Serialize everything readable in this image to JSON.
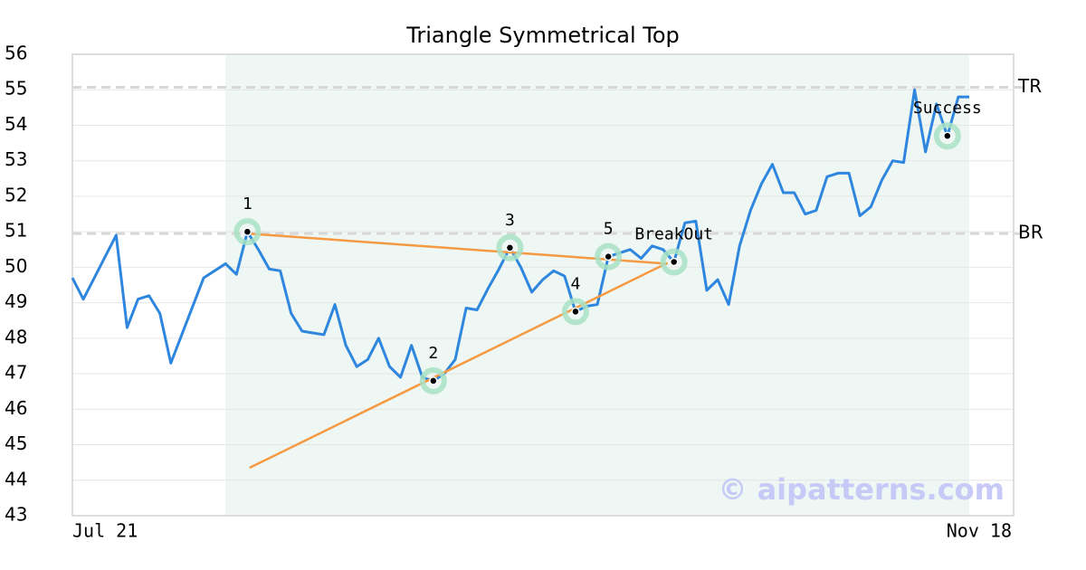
{
  "chart_data": {
    "type": "line",
    "title": "Triangle Symmetrical Top",
    "categories": [
      "Jul 21",
      null,
      null,
      null,
      null,
      null,
      null,
      null,
      null,
      null,
      null,
      null,
      null,
      null,
      null,
      null,
      null,
      null,
      null,
      null,
      null,
      null,
      null,
      null,
      null,
      null,
      null,
      null,
      null,
      null,
      null,
      null,
      null,
      null,
      null,
      null,
      null,
      null,
      null,
      null,
      null,
      null,
      null,
      null,
      null,
      null,
      null,
      null,
      null,
      null,
      null,
      null,
      null,
      null,
      null,
      null,
      null,
      null,
      null,
      null,
      null,
      null,
      null,
      null,
      null,
      null,
      null,
      null,
      null,
      null,
      null,
      null,
      null,
      null,
      null,
      null,
      null,
      null,
      null,
      null,
      null,
      null,
      "Nov 18"
    ],
    "series": [
      {
        "color": "#2e86de",
        "values": [
          49.7,
          49.1,
          49.7,
          50.3,
          50.9,
          48.3,
          49.1,
          49.2,
          48.7,
          47.3,
          48.1,
          48.9,
          49.7,
          49.9,
          50.1,
          49.8,
          51.0,
          50.5,
          49.95,
          49.9,
          48.7,
          48.2,
          48.15,
          48.1,
          48.95,
          47.8,
          47.2,
          47.4,
          48.0,
          47.2,
          46.9,
          47.8,
          46.9,
          46.8,
          47.0,
          47.4,
          48.85,
          48.8,
          49.4,
          49.95,
          50.55,
          50.0,
          49.3,
          49.65,
          49.9,
          49.75,
          48.75,
          48.9,
          48.95,
          50.3,
          50.4,
          50.5,
          50.25,
          50.6,
          50.5,
          50.15,
          51.25,
          51.3,
          49.35,
          49.65,
          48.95,
          50.6,
          51.6,
          52.35,
          52.9,
          52.1,
          52.1,
          51.5,
          51.6,
          52.55,
          52.65,
          52.65,
          51.45,
          51.7,
          52.45,
          53.0,
          52.95,
          55.0,
          53.25,
          54.6,
          53.7,
          54.8,
          54.8
        ]
      }
    ],
    "ylim": [
      43,
      56
    ],
    "yticks": [
      43,
      44,
      45,
      46,
      47,
      48,
      49,
      50,
      51,
      52,
      53,
      54,
      55,
      56
    ],
    "grid": true,
    "reference_lines": [
      {
        "label": "TR",
        "value": 55.07
      },
      {
        "label": "BR",
        "value": 50.95
      }
    ],
    "trendlines": [
      {
        "color": "#f59a42",
        "x": [
          16,
          54.4
        ],
        "y": [
          50.95,
          50.1
        ]
      },
      {
        "color": "#f59a42",
        "x": [
          16.2,
          54.4
        ],
        "y": [
          44.35,
          50.12
        ]
      }
    ],
    "markers": [
      {
        "label": "1",
        "x": 16,
        "y": 51.0
      },
      {
        "label": "2",
        "x": 33,
        "y": 46.8
      },
      {
        "label": "3",
        "x": 40,
        "y": 50.55
      },
      {
        "label": "4",
        "x": 46,
        "y": 48.75
      },
      {
        "label": "5",
        "x": 49,
        "y": 50.3
      },
      {
        "label": "BreakOut",
        "x": 55,
        "y": 50.15
      },
      {
        "label": "Success",
        "x": 80,
        "y": 53.7
      }
    ],
    "watermark": "© aipatterns.com"
  }
}
